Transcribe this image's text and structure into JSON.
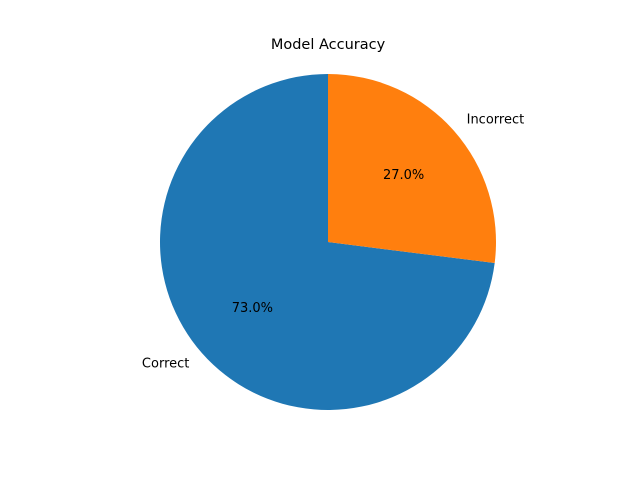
{
  "chart_data": {
    "type": "pie",
    "title": "Model Accuracy",
    "categories": [
      "Correct",
      "Incorrect"
    ],
    "values": [
      73.0,
      27.0
    ],
    "percent_labels": [
      "73.0%",
      "27.0%"
    ],
    "colors": [
      "#1f77b4",
      "#ff7f0e"
    ],
    "start_angle_deg": 90,
    "direction": "counterclockwise",
    "legend": "none"
  }
}
